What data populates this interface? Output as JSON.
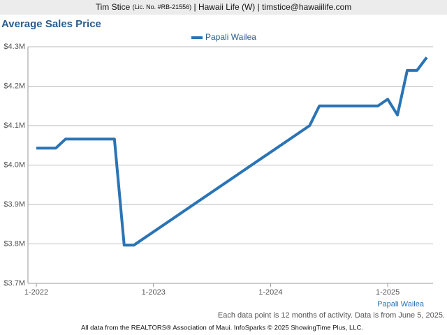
{
  "header": {
    "name": "Tim Stice",
    "license": "(Lic. No. #RB-21556)",
    "rest": "| Hawaii Life (W) | timstice@hawaiilife.com"
  },
  "chart_data": {
    "type": "line",
    "title": "Average Sales Price",
    "x": [
      "1-2022",
      "3-2022",
      "4-2022",
      "9-2022",
      "10-2022",
      "11-2022",
      "5-2024",
      "6-2024",
      "12-2024",
      "1-2025",
      "2-2025",
      "3-2025",
      "4-2025",
      "5-2025"
    ],
    "series": [
      {
        "name": "Papali Wailea",
        "color": "#2a74b5",
        "values": [
          4043000,
          4043000,
          4066000,
          4066000,
          3797000,
          3797000,
          4100000,
          4150000,
          4150000,
          4167000,
          4127000,
          4240000,
          4240000,
          4273000
        ]
      }
    ],
    "xlim": [
      "1-2022",
      "5-2025"
    ],
    "xticks": [
      "1-2022",
      "1-2023",
      "1-2024",
      "1-2025"
    ],
    "ylim": [
      3700000,
      4300000
    ],
    "yticks": [
      {
        "value": 3700000,
        "label": "$3.7M"
      },
      {
        "value": 3800000,
        "label": "$3.8M"
      },
      {
        "value": 3900000,
        "label": "$3.9M"
      },
      {
        "value": 4000000,
        "label": "$4.0M"
      },
      {
        "value": 4100000,
        "label": "$4.1M"
      },
      {
        "value": 4200000,
        "label": "$4.2M"
      },
      {
        "value": 4300000,
        "label": "$4.3M"
      }
    ],
    "grid": true,
    "legend": "top",
    "note": "Each data point is 12 months of activity. Data is from June 5, 2025.",
    "source": "All data from the REALTORS® Association of Maui. InfoSparks © 2025 ShowingTime Plus, LLC."
  }
}
